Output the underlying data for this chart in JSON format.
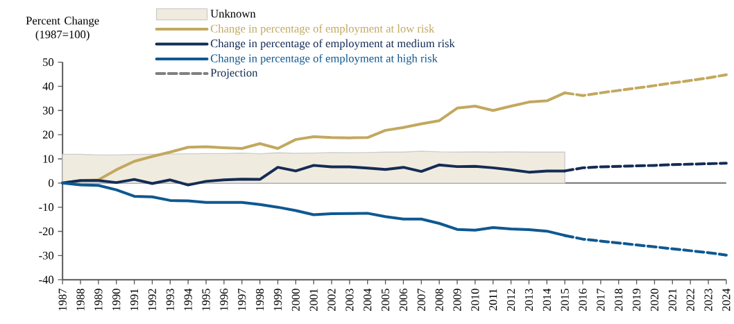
{
  "chart_data": {
    "type": "line",
    "ylabel": "Percent Change (1987=100)",
    "x": [
      1987,
      1988,
      1989,
      1990,
      1991,
      1992,
      1993,
      1994,
      1995,
      1996,
      1997,
      1998,
      1999,
      2000,
      2001,
      2002,
      2003,
      2004,
      2005,
      2006,
      2007,
      2008,
      2009,
      2010,
      2011,
      2012,
      2013,
      2014,
      2015
    ],
    "series": [
      {
        "name": "Unknown",
        "type": "area",
        "color": "#f0ebdf",
        "values": [
          11.9,
          11.9,
          11.6,
          11.6,
          11.8,
          11.9,
          12,
          12.1,
          12.2,
          12.2,
          12.4,
          12.1,
          12.5,
          12.3,
          12.4,
          12.6,
          12.5,
          12.6,
          12.8,
          12.8,
          13.2,
          12.9,
          12.8,
          12.9,
          12.8,
          12.9,
          12.8,
          12.8,
          12.8
        ]
      },
      {
        "name": "Change in percentage of employment at low risk",
        "color": "#c2a85f",
        "values": [
          0,
          1,
          1.3,
          5.5,
          9,
          11,
          12.8,
          14.8,
          15,
          14.6,
          14.3,
          16.3,
          14.3,
          18,
          19.2,
          18.8,
          18.7,
          18.8,
          21.8,
          23,
          24.5,
          25.8,
          31,
          31.8,
          30,
          31.8,
          33.5,
          34,
          37.3
        ]
      },
      {
        "name": "Change in percentage of employment at medium risk",
        "color": "#142c55",
        "values": [
          0,
          1,
          1,
          0.2,
          1.5,
          -0.2,
          1.3,
          -0.8,
          0.7,
          1.3,
          1.6,
          1.5,
          6.5,
          5,
          7.3,
          6.7,
          6.7,
          6.2,
          5.6,
          6.5,
          4.8,
          7.5,
          6.8,
          6.9,
          6.3,
          5.5,
          4.5,
          5,
          5
        ]
      },
      {
        "name": "Change in percentage of employment at high risk",
        "color": "#0e5891",
        "values": [
          0,
          -0.8,
          -1,
          -2.8,
          -5.5,
          -5.7,
          -7.2,
          -7.4,
          -8,
          -8,
          -8,
          -8.9,
          -10,
          -11.4,
          -13.1,
          -12.7,
          -12.6,
          -12.5,
          -13.9,
          -14.9,
          -14.9,
          -16.7,
          -19.2,
          -19.5,
          -18.4,
          -19,
          -19.3,
          -19.9,
          -21.7
        ]
      },
      {
        "color": "#c2a85f",
        "line_style": "dashed",
        "x": [
          2015,
          2016,
          2017,
          2018,
          2019,
          2020,
          2021,
          2022,
          2023,
          2024
        ],
        "values": [
          37.3,
          36.2,
          37.3,
          38.3,
          39.3,
          40.3,
          41.4,
          42.4,
          43.5,
          44.8
        ]
      },
      {
        "color": "#142c55",
        "line_style": "dashed",
        "x": [
          2015,
          2016,
          2017,
          2018,
          2019,
          2020,
          2021,
          2022,
          2023,
          2024
        ],
        "values": [
          5,
          6.3,
          6.7,
          6.9,
          7.1,
          7.3,
          7.6,
          7.8,
          8,
          8.2
        ]
      },
      {
        "color": "#0e5891",
        "line_style": "dashed",
        "x": [
          2015,
          2016,
          2017,
          2018,
          2019,
          2020,
          2021,
          2022,
          2023,
          2024
        ],
        "values": [
          -21.7,
          -23.2,
          -24,
          -24.8,
          -25.6,
          -26.4,
          -27.2,
          -28,
          -28.8,
          -29.8
        ]
      }
    ],
    "annotations": [
      "Projection"
    ],
    "xlim": [
      1987,
      2024
    ],
    "ylim": [
      -40,
      50
    ],
    "xticks": [
      1987,
      1988,
      1989,
      1990,
      1991,
      1992,
      1993,
      1994,
      1995,
      1996,
      1997,
      1998,
      1999,
      2000,
      2001,
      2002,
      2003,
      2004,
      2005,
      2006,
      2007,
      2008,
      2009,
      2010,
      2011,
      2012,
      2013,
      2014,
      2015,
      2016,
      2017,
      2018,
      2019,
      2020,
      2021,
      2022,
      2023,
      2024
    ],
    "yticks": [
      -40,
      -30,
      -20,
      -10,
      0,
      10,
      20,
      30,
      40,
      50
    ],
    "ref_lines": [
      {
        "axis": "y",
        "value": 0,
        "color": "#707070"
      }
    ],
    "grid": false,
    "legend": "top"
  }
}
